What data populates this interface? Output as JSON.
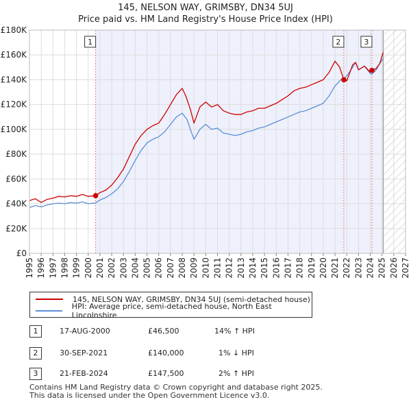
{
  "header": {
    "title_line1": "145, NELSON WAY, GRIMSBY, DN34 5UJ",
    "title_line2": "Price paid vs. HM Land Registry's House Price Index (HPI)"
  },
  "chart_data": {
    "type": "line",
    "xlim": [
      1995,
      2027
    ],
    "ylim": [
      0,
      180000
    ],
    "x_ticks": [
      1995,
      1996,
      1997,
      1998,
      1999,
      2000,
      2001,
      2002,
      2003,
      2004,
      2005,
      2006,
      2007,
      2008,
      2009,
      2010,
      2011,
      2012,
      2013,
      2014,
      2015,
      2016,
      2017,
      2018,
      2019,
      2020,
      2021,
      2022,
      2023,
      2024,
      2025,
      2026,
      2027
    ],
    "y_ticks": [
      {
        "value": 0,
        "label": "£0"
      },
      {
        "value": 20000,
        "label": "£20K"
      },
      {
        "value": 40000,
        "label": "£40K"
      },
      {
        "value": 60000,
        "label": "£60K"
      },
      {
        "value": 80000,
        "label": "£80K"
      },
      {
        "value": 100000,
        "label": "£100K"
      },
      {
        "value": 120000,
        "label": "£120K"
      },
      {
        "value": 140000,
        "label": "£140K"
      },
      {
        "value": 160000,
        "label": "£160K"
      },
      {
        "value": 180000,
        "label": "£180K"
      }
    ],
    "shaded_from": 2000.63,
    "projection_from": 2025.1,
    "series": [
      {
        "name": "145, NELSON WAY, GRIMSBY, DN34 5UJ (semi-detached house)",
        "color": "#cc0000",
        "points": [
          [
            1995,
            42500
          ],
          [
            1995.5,
            44000
          ],
          [
            1996,
            41000
          ],
          [
            1996.5,
            43500
          ],
          [
            1997,
            44500
          ],
          [
            1997.5,
            46000
          ],
          [
            1998,
            45500
          ],
          [
            1998.5,
            46500
          ],
          [
            1999,
            46000
          ],
          [
            1999.5,
            47500
          ],
          [
            2000,
            46000
          ],
          [
            2000.63,
            46500
          ],
          [
            2001,
            49000
          ],
          [
            2001.5,
            51000
          ],
          [
            2002,
            55000
          ],
          [
            2002.5,
            61000
          ],
          [
            2003,
            68000
          ],
          [
            2003.5,
            78000
          ],
          [
            2004,
            88000
          ],
          [
            2004.5,
            95000
          ],
          [
            2005,
            100000
          ],
          [
            2005.5,
            103000
          ],
          [
            2006,
            105000
          ],
          [
            2006.5,
            112000
          ],
          [
            2007,
            120000
          ],
          [
            2007.5,
            128000
          ],
          [
            2008,
            133000
          ],
          [
            2008.3,
            127000
          ],
          [
            2008.7,
            116000
          ],
          [
            2009,
            105000
          ],
          [
            2009.5,
            118000
          ],
          [
            2010,
            122000
          ],
          [
            2010.5,
            118000
          ],
          [
            2011,
            120000
          ],
          [
            2011.5,
            115000
          ],
          [
            2012,
            113000
          ],
          [
            2012.5,
            112000
          ],
          [
            2013,
            112000
          ],
          [
            2013.5,
            114000
          ],
          [
            2014,
            115000
          ],
          [
            2014.5,
            117000
          ],
          [
            2015,
            117000
          ],
          [
            2015.5,
            119000
          ],
          [
            2016,
            121000
          ],
          [
            2016.5,
            124000
          ],
          [
            2017,
            127000
          ],
          [
            2017.5,
            131000
          ],
          [
            2018,
            133000
          ],
          [
            2018.5,
            134000
          ],
          [
            2019,
            136000
          ],
          [
            2019.5,
            138000
          ],
          [
            2020,
            140000
          ],
          [
            2020.5,
            146000
          ],
          [
            2021,
            155000
          ],
          [
            2021.4,
            150000
          ],
          [
            2021.75,
            140000
          ],
          [
            2022,
            139000
          ],
          [
            2022.5,
            152000
          ],
          [
            2022.75,
            154000
          ],
          [
            2023,
            148000
          ],
          [
            2023.5,
            151000
          ],
          [
            2024,
            146000
          ],
          [
            2024.14,
            147500
          ],
          [
            2024.5,
            149000
          ],
          [
            2024.8,
            153000
          ],
          [
            2025.1,
            162000
          ]
        ]
      },
      {
        "name": "HPI: Average price, semi-detached house, North East Lincolnshire",
        "color": "#5b8fd6",
        "points": [
          [
            1995,
            37000
          ],
          [
            1995.5,
            38500
          ],
          [
            1996,
            37500
          ],
          [
            1996.5,
            39000
          ],
          [
            1997,
            40000
          ],
          [
            1997.5,
            40500
          ],
          [
            1998,
            40000
          ],
          [
            1998.5,
            41000
          ],
          [
            1999,
            40500
          ],
          [
            1999.5,
            41500
          ],
          [
            2000,
            40000
          ],
          [
            2000.63,
            40700
          ],
          [
            2001,
            43000
          ],
          [
            2001.5,
            45000
          ],
          [
            2002,
            48000
          ],
          [
            2002.5,
            52000
          ],
          [
            2003,
            58000
          ],
          [
            2003.5,
            66000
          ],
          [
            2004,
            75000
          ],
          [
            2004.5,
            83000
          ],
          [
            2005,
            89000
          ],
          [
            2005.5,
            92000
          ],
          [
            2006,
            94000
          ],
          [
            2006.5,
            98000
          ],
          [
            2007,
            104000
          ],
          [
            2007.5,
            110000
          ],
          [
            2008,
            113000
          ],
          [
            2008.4,
            108000
          ],
          [
            2008.8,
            97000
          ],
          [
            2009,
            92000
          ],
          [
            2009.5,
            100000
          ],
          [
            2010,
            104000
          ],
          [
            2010.5,
            100000
          ],
          [
            2011,
            101000
          ],
          [
            2011.5,
            97000
          ],
          [
            2012,
            96000
          ],
          [
            2012.5,
            95000
          ],
          [
            2013,
            96000
          ],
          [
            2013.5,
            98000
          ],
          [
            2014,
            99000
          ],
          [
            2014.5,
            101000
          ],
          [
            2015,
            102000
          ],
          [
            2015.5,
            104000
          ],
          [
            2016,
            106000
          ],
          [
            2016.5,
            108000
          ],
          [
            2017,
            110000
          ],
          [
            2017.5,
            112000
          ],
          [
            2018,
            114000
          ],
          [
            2018.5,
            115000
          ],
          [
            2019,
            117000
          ],
          [
            2019.5,
            119000
          ],
          [
            2020,
            121000
          ],
          [
            2020.5,
            127000
          ],
          [
            2021,
            135000
          ],
          [
            2021.5,
            140000
          ],
          [
            2021.75,
            141000
          ],
          [
            2022,
            143000
          ],
          [
            2022.5,
            150000
          ],
          [
            2022.75,
            154000
          ],
          [
            2023,
            148000
          ],
          [
            2023.5,
            151000
          ],
          [
            2024,
            145000
          ],
          [
            2024.14,
            144500
          ],
          [
            2024.5,
            148000
          ],
          [
            2024.8,
            153000
          ],
          [
            2025.1,
            157000
          ]
        ]
      }
    ],
    "sale_markers": [
      {
        "label": "1",
        "year": 2000.63,
        "price": 46500
      },
      {
        "label": "2",
        "year": 2021.75,
        "price": 140000
      },
      {
        "label": "3",
        "year": 2024.14,
        "price": 147500
      }
    ]
  },
  "legend": {
    "items": [
      {
        "label": "145, NELSON WAY, GRIMSBY, DN34 5UJ (semi-detached house)",
        "color": "#cc0000"
      },
      {
        "label": "HPI: Average price, semi-detached house, North East Lincolnshire",
        "color": "#5b8fd6"
      }
    ]
  },
  "transactions": [
    {
      "num": "1",
      "date": "17-AUG-2000",
      "price": "£46,500",
      "change": "14% ↑ HPI"
    },
    {
      "num": "2",
      "date": "30-SEP-2021",
      "price": "£140,000",
      "change": "1% ↓ HPI"
    },
    {
      "num": "3",
      "date": "21-FEB-2024",
      "price": "£147,500",
      "change": "2% ↑ HPI"
    }
  ],
  "footer": {
    "line1": "Contains HM Land Registry data © Crown copyright and database right 2025.",
    "line2": "This data is licensed under the Open Government Licence v3.0."
  }
}
